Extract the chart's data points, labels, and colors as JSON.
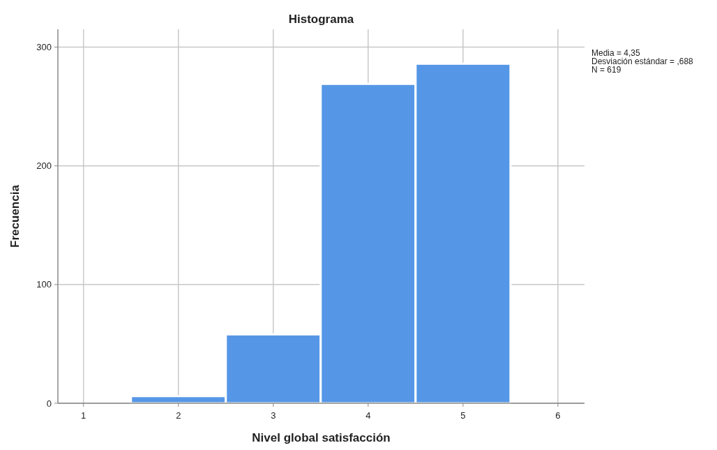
{
  "chart_data": {
    "type": "histogram",
    "title": "Histograma",
    "xlabel": "Nivel global satisfacción",
    "ylabel": "Frecuencia",
    "bins": [
      1.5,
      2.5,
      3.5,
      4.5,
      5.5
    ],
    "values": [
      6,
      58,
      269,
      286
    ],
    "color": "#5596e6",
    "xlim": [
      0.73,
      6.28
    ],
    "xticks": [
      1,
      2,
      3,
      4,
      5,
      6
    ],
    "ylim": [
      0,
      315
    ],
    "yticks": [
      0,
      100,
      200,
      300
    ],
    "grid": true,
    "annotations": [
      "Media = 4,35",
      "Desviación estándar = ,688",
      "N = 619"
    ]
  }
}
